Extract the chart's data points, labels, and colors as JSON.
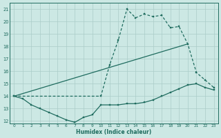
{
  "xlabel": "Humidex (Indice chaleur)",
  "bg_color": "#cce8e4",
  "line_color": "#1e6b5e",
  "grid_color": "#aaccc8",
  "xlim": [
    -0.5,
    23.5
  ],
  "ylim": [
    11.8,
    21.5
  ],
  "yticks": [
    12,
    13,
    14,
    15,
    16,
    17,
    18,
    19,
    20,
    21
  ],
  "xticks": [
    0,
    1,
    2,
    3,
    4,
    5,
    6,
    7,
    8,
    9,
    10,
    11,
    12,
    13,
    14,
    15,
    16,
    17,
    18,
    19,
    20,
    21,
    22,
    23
  ],
  "line1_x": [
    0,
    1,
    2,
    3,
    4,
    5,
    6,
    7,
    8,
    9,
    10,
    11,
    12,
    13,
    14,
    15,
    16,
    17,
    18,
    19,
    20,
    21,
    22,
    23
  ],
  "line1_y": [
    14.0,
    13.8,
    13.3,
    13.0,
    12.7,
    12.4,
    12.1,
    11.9,
    12.3,
    12.5,
    13.3,
    13.3,
    13.3,
    13.4,
    13.4,
    13.5,
    13.7,
    14.0,
    14.3,
    14.6,
    14.9,
    15.0,
    14.7,
    14.5
  ],
  "line2_x": [
    0,
    10,
    11,
    12,
    13,
    14,
    15,
    16,
    17,
    18,
    19,
    20,
    21,
    22,
    23
  ],
  "line2_y": [
    14.0,
    14.0,
    16.5,
    18.5,
    21.0,
    20.3,
    20.6,
    20.4,
    20.5,
    19.5,
    19.6,
    18.2,
    15.9,
    15.3,
    14.7
  ],
  "line3_x": [
    0,
    20
  ],
  "line3_y": [
    14.0,
    18.2
  ]
}
